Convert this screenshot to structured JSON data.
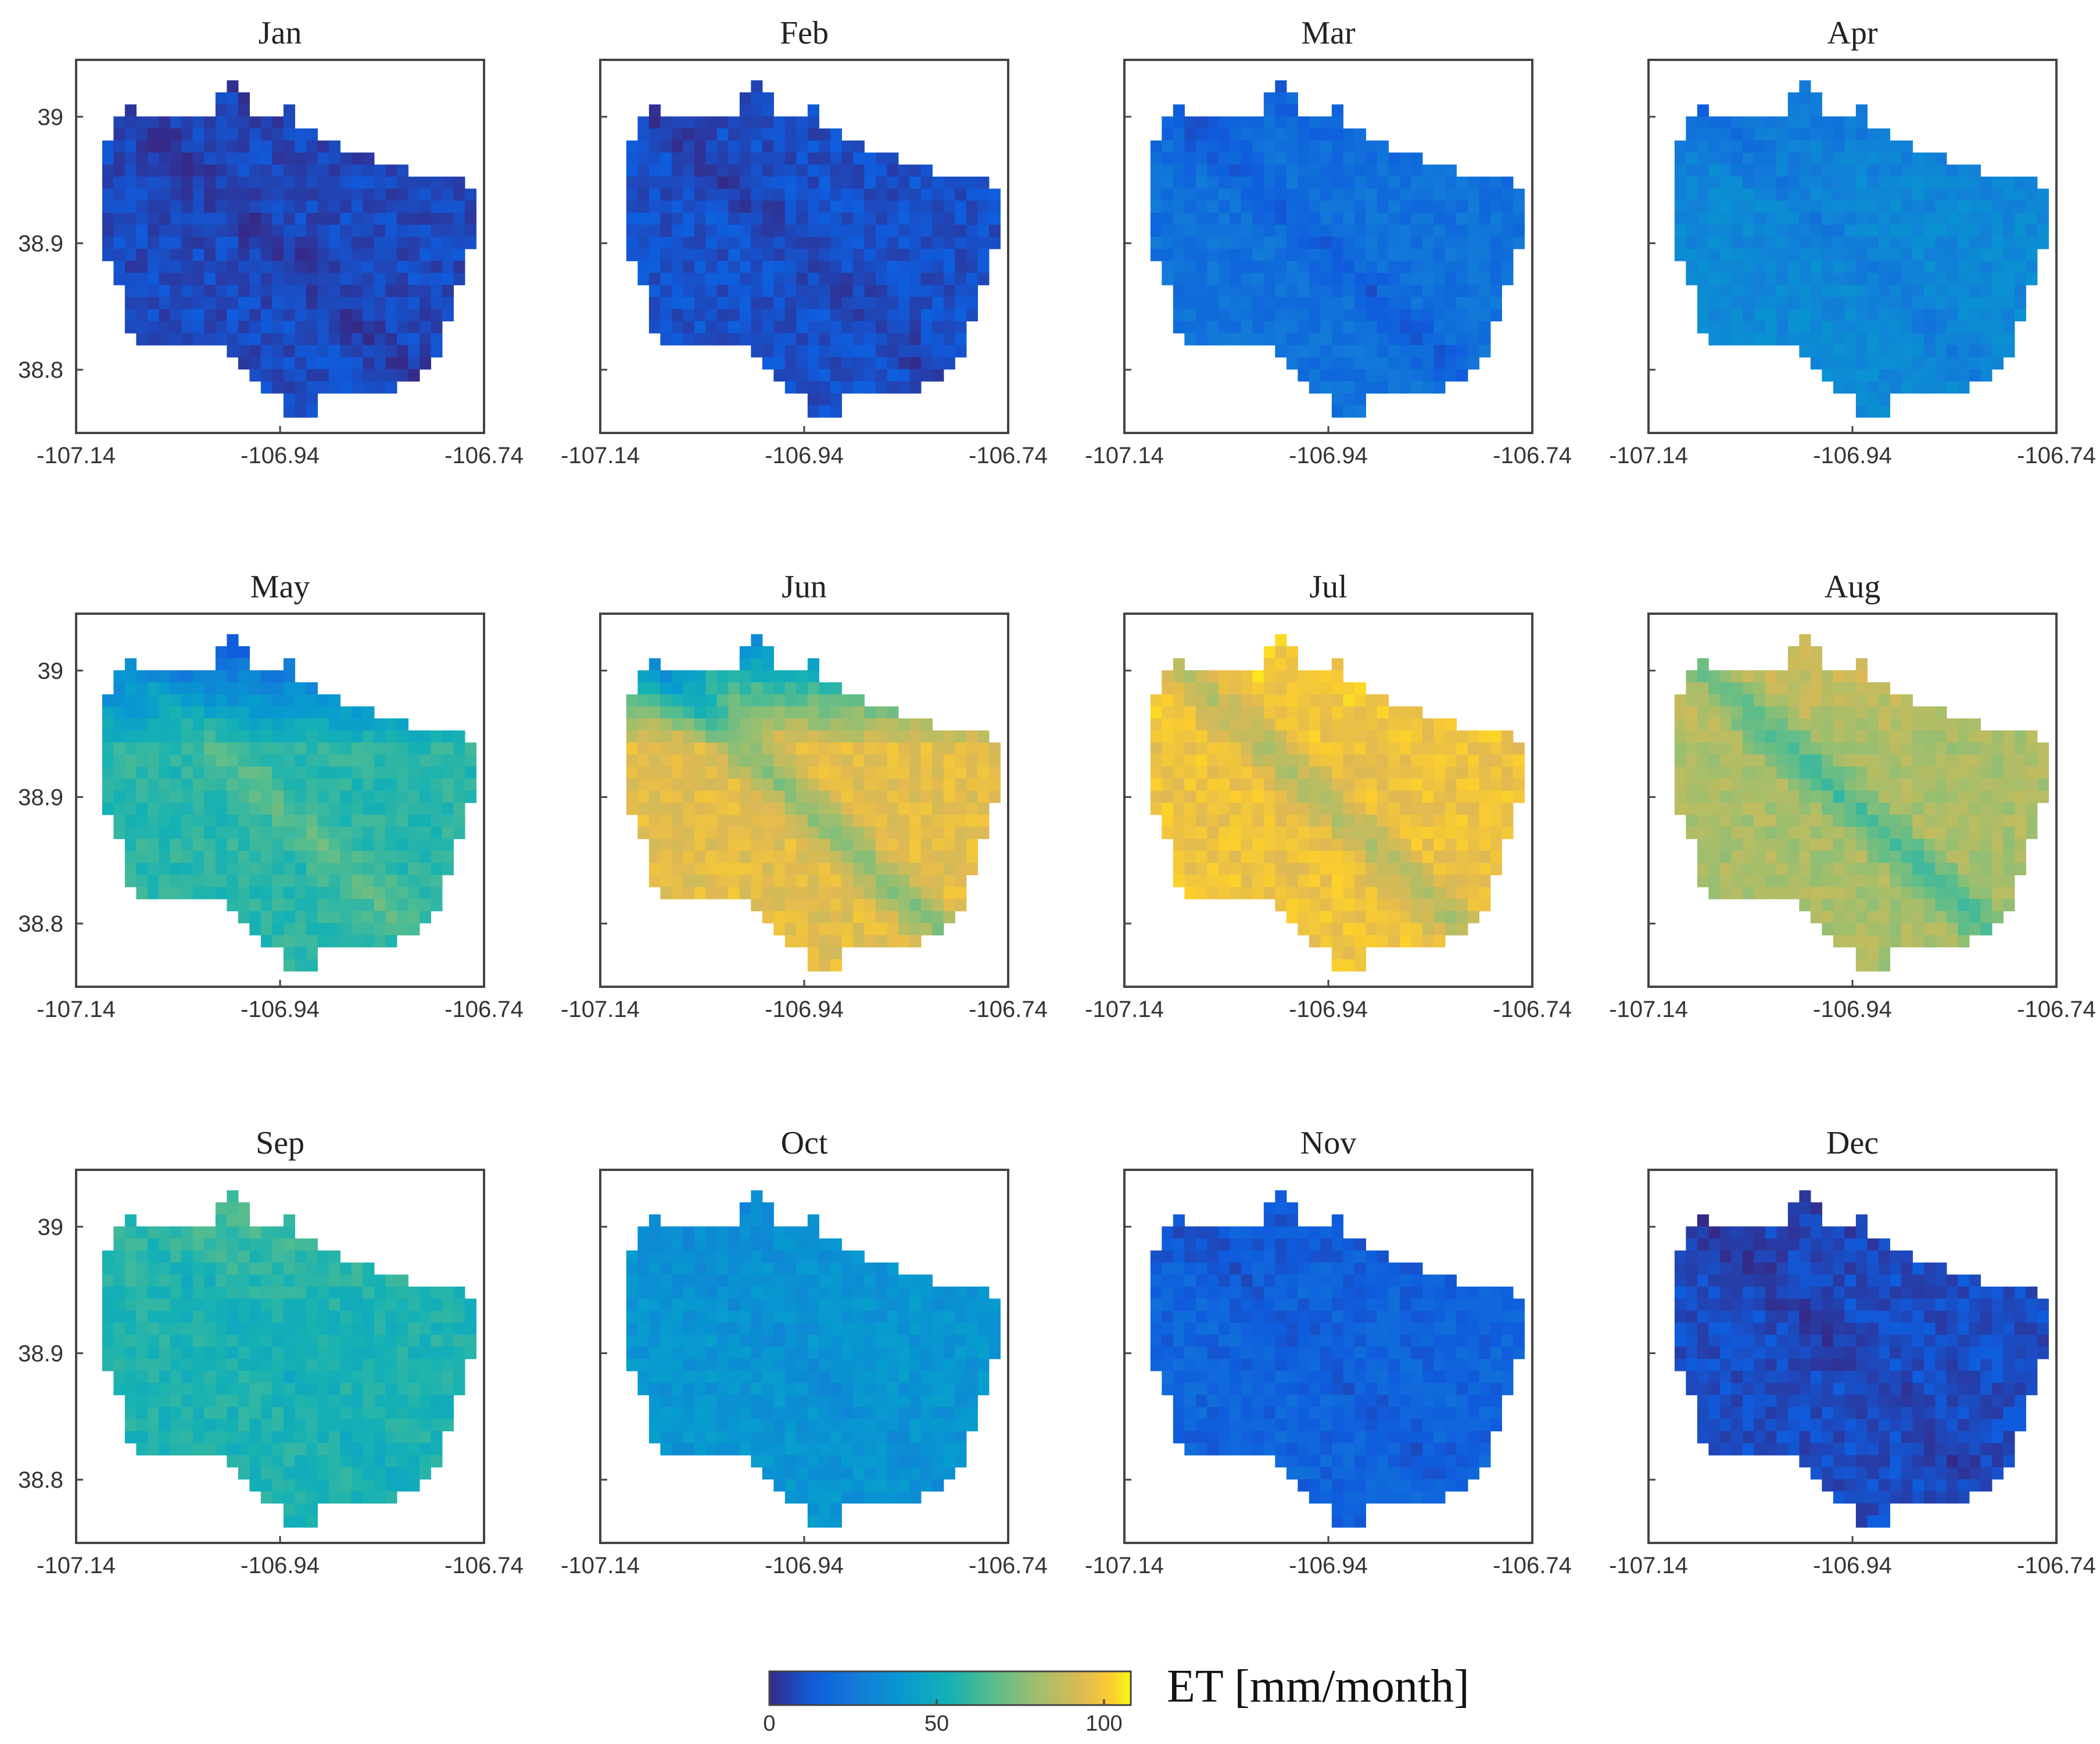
{
  "chart_data": {
    "type": "heatmap",
    "panels": [
      {
        "title": "Jan",
        "mean": 8,
        "north_anom": -2,
        "valley_anom": -5
      },
      {
        "title": "Feb",
        "mean": 10,
        "north_anom": -2,
        "valley_anom": -6
      },
      {
        "title": "Mar",
        "mean": 22,
        "north_anom": -6,
        "valley_anom": -8
      },
      {
        "title": "Apr",
        "mean": 32,
        "north_anom": -10,
        "valley_anom": -6
      },
      {
        "title": "May",
        "mean": 58,
        "north_anom": -45,
        "valley_anom": 10
      },
      {
        "title": "Jun",
        "mean": 95,
        "north_anom": -60,
        "valley_anom": -20
      },
      {
        "title": "Jul",
        "mean": 98,
        "north_anom": 4,
        "valley_anom": -15
      },
      {
        "title": "Aug",
        "mean": 82,
        "north_anom": 10,
        "valley_anom": -20
      },
      {
        "title": "Sep",
        "mean": 55,
        "north_anom": 10,
        "valley_anom": -4
      },
      {
        "title": "Oct",
        "mean": 38,
        "north_anom": -4,
        "valley_anom": -3
      },
      {
        "title": "Nov",
        "mean": 16,
        "north_anom": -4,
        "valley_anom": -4
      },
      {
        "title": "Dec",
        "mean": 9,
        "north_anom": -3,
        "valley_anom": -5
      }
    ],
    "x_ticks": [
      "-107.14",
      "-106.94",
      "-106.74"
    ],
    "x_tick_values": [
      -107.14,
      -106.94,
      -106.74
    ],
    "y_ticks": [
      "39",
      "38.9",
      "38.8"
    ],
    "y_tick_values": [
      39.0,
      38.9,
      38.8
    ],
    "xlim": [
      -107.14,
      -106.74
    ],
    "ylim": [
      38.75,
      39.045
    ],
    "colorbar": {
      "label": "ET [mm/month]",
      "ticks": [
        "0",
        "50",
        "100"
      ],
      "tick_values": [
        0,
        50,
        100
      ],
      "range": [
        0,
        108
      ]
    },
    "colormap": "parula",
    "grid": false
  }
}
